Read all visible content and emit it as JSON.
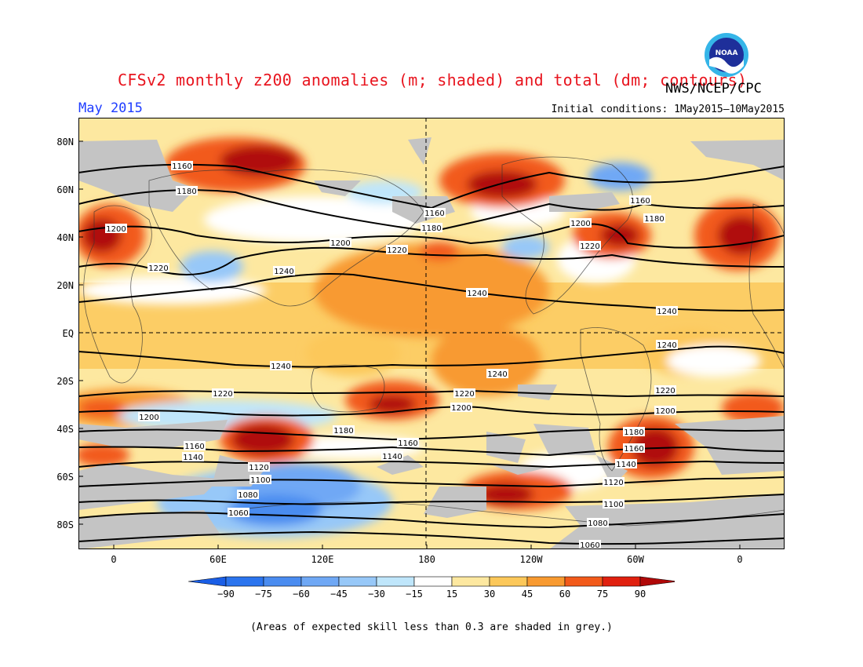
{
  "header": {
    "title": "CFSv2 monthly z200 anomalies (m; shaded) and total (dm; contours)",
    "agency": "NWS/NCEP/CPC",
    "month": "May 2015",
    "initial_conditions": "Initial conditions: 1May2015–10May2015",
    "logo_text": "NOAA"
  },
  "map": {
    "lat_labels": [
      "80N",
      "60N",
      "40N",
      "20N",
      "EQ",
      "20S",
      "40S",
      "60S",
      "80S"
    ],
    "lon_labels": [
      "0",
      "60E",
      "120E",
      "180",
      "120W",
      "60W",
      "0"
    ],
    "contour_labels": [
      "1060",
      "1080",
      "1100",
      "1120",
      "1140",
      "1160",
      "1180",
      "1200",
      "1220",
      "1240"
    ]
  },
  "colorbar": {
    "ticks": [
      "−90",
      "−75",
      "−60",
      "−45",
      "−30",
      "−15",
      "15",
      "30",
      "45",
      "60",
      "75",
      "90"
    ],
    "colors": [
      "#1a5ee6",
      "#2b74ee",
      "#4a8cf0",
      "#6fa8f5",
      "#97c8f8",
      "#bfe6fb",
      "#ffffff",
      "#fde8a0",
      "#fcc85a",
      "#f89a30",
      "#f25a1a",
      "#e0200f",
      "#b00808"
    ]
  },
  "footnote": "(Areas of expected skill less than 0.3 are shaded in grey.)"
}
